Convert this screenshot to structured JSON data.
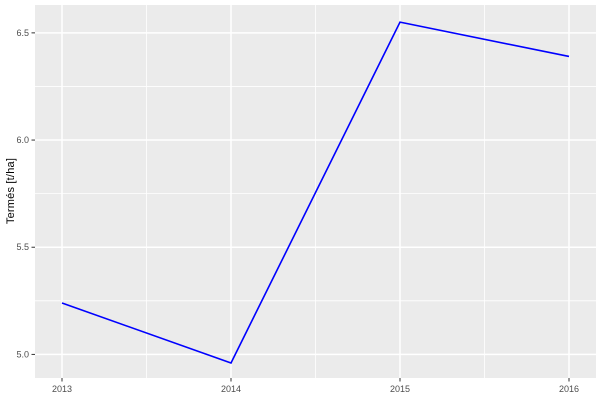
{
  "chart_data": {
    "type": "line",
    "x": [
      2013,
      2014,
      2015,
      2016
    ],
    "values": [
      5.24,
      4.96,
      6.55,
      6.39
    ],
    "title": "",
    "xlabel": "",
    "ylabel": "Termés [t/ha]",
    "x_tick_labels": [
      "2013",
      "2014",
      "2015",
      "2016"
    ],
    "y_ticks": [
      5.0,
      5.5,
      6.0,
      6.5
    ],
    "y_tick_labels": [
      "5.0",
      "5.5",
      "6.0",
      "6.5"
    ],
    "x_minor_ticks": [
      2013.5,
      2014.5,
      2015.5
    ],
    "y_minor_ticks": [
      5.25,
      5.75,
      6.25
    ],
    "xlim": [
      2013,
      2016
    ],
    "ylim": [
      4.89,
      6.63
    ],
    "grid": true,
    "legend": "none",
    "line_color": "#0000FF",
    "theme": {
      "panel_background": "#EBEBEB",
      "outer_background": "#FFFFFF",
      "grid_major_color": "#FFFFFF",
      "grid_minor_color": "#FFFFFF",
      "tick_mark_color": "#333333",
      "tick_label_color": "#4D4D4D",
      "axis_title_color": "#000000"
    }
  }
}
